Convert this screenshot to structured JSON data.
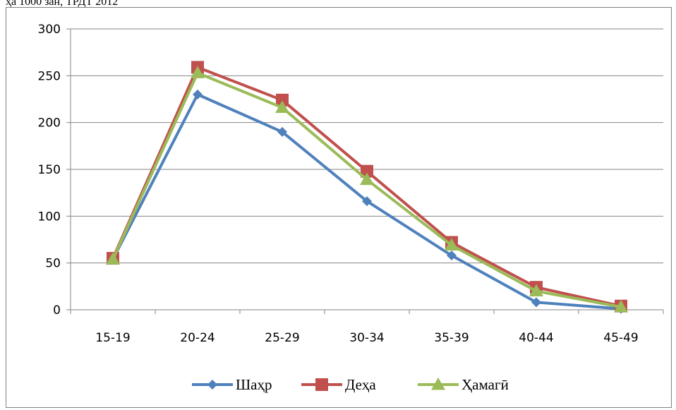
{
  "caption": "ҳа 1000 зан, ТРДТ 2012",
  "chart_data": {
    "type": "line",
    "categories": [
      "15-19",
      "20-24",
      "25-29",
      "30-34",
      "35-39",
      "40-44",
      "45-49"
    ],
    "ylim": [
      0,
      300
    ],
    "yticks": [
      0,
      50,
      100,
      150,
      200,
      250,
      300
    ],
    "grid": true,
    "legend_position": "bottom",
    "series": [
      {
        "name": "Шаҳр",
        "color": "#4F81BD",
        "marker": "diamond",
        "values": [
          54,
          230,
          190,
          116,
          58,
          8,
          1
        ]
      },
      {
        "name": "Деҳа",
        "color": "#C0504D",
        "marker": "square",
        "values": [
          55,
          259,
          224,
          148,
          72,
          24,
          4
        ]
      },
      {
        "name": "Ҳамагӣ",
        "color": "#9BBB59",
        "marker": "triangle",
        "values": [
          54,
          253,
          216,
          139,
          69,
          20,
          3
        ]
      }
    ]
  }
}
